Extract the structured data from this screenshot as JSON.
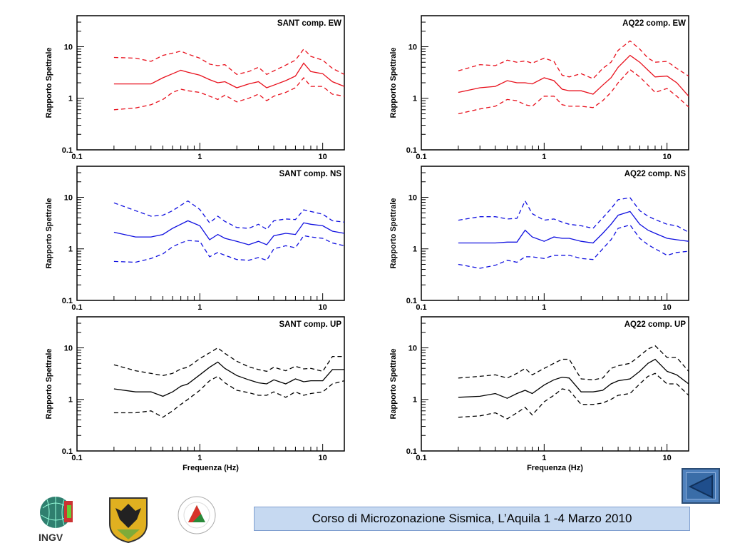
{
  "chart_data": [
    {
      "type": "line",
      "title": "SANT comp. EW",
      "ylabel": "Rapporto Spettrale",
      "xlabel": "",
      "xscale": "log",
      "yscale": "log",
      "xlim": [
        0.1,
        15
      ],
      "ylim": [
        0.1,
        40
      ],
      "xticks": [
        "0.1",
        "1",
        "10"
      ],
      "yticks": [
        "0.1",
        "1",
        "10"
      ],
      "color": "#e8101c",
      "x": [
        0.2,
        0.3,
        0.4,
        0.5,
        0.6,
        0.7,
        0.8,
        1,
        1.2,
        1.4,
        1.6,
        2,
        2.5,
        3,
        3.5,
        4,
        5,
        6,
        7,
        8,
        10,
        12,
        15
      ],
      "series": [
        {
          "style": "solid",
          "values": [
            1.9,
            1.9,
            1.9,
            2.5,
            3,
            3.5,
            3.2,
            2.8,
            2.3,
            2.0,
            2.1,
            1.6,
            1.9,
            2.1,
            1.6,
            1.8,
            2.2,
            2.7,
            4.8,
            3.3,
            3.0,
            2.1,
            1.7
          ]
        },
        {
          "style": "dashed",
          "values": [
            6.2,
            6.0,
            5.2,
            6.8,
            7.5,
            8.2,
            7.2,
            6.0,
            4.6,
            4.3,
            4.5,
            2.9,
            3.3,
            4.0,
            2.9,
            3.4,
            4.4,
            5.5,
            9.0,
            6.5,
            5.5,
            3.8,
            2.9
          ]
        },
        {
          "style": "dashed",
          "values": [
            0.6,
            0.65,
            0.75,
            0.95,
            1.3,
            1.5,
            1.4,
            1.3,
            1.1,
            0.95,
            1.15,
            0.85,
            1.0,
            1.2,
            0.9,
            1.1,
            1.3,
            1.6,
            2.5,
            1.7,
            1.7,
            1.2,
            1.1
          ]
        }
      ]
    },
    {
      "type": "line",
      "title": "AQ22 comp. EW",
      "ylabel": "Rapporto Spettrale",
      "xlabel": "",
      "xscale": "log",
      "yscale": "log",
      "xlim": [
        0.1,
        15
      ],
      "ylim": [
        0.1,
        40
      ],
      "xticks": [
        "0.1",
        "1",
        "10"
      ],
      "yticks": [
        "0.1",
        "1",
        "10"
      ],
      "color": "#e8101c",
      "x": [
        0.2,
        0.3,
        0.4,
        0.5,
        0.6,
        0.7,
        0.8,
        1,
        1.2,
        1.4,
        1.6,
        2,
        2.5,
        3,
        3.5,
        4,
        5,
        6,
        7,
        8,
        10,
        12,
        15
      ],
      "series": [
        {
          "style": "solid",
          "values": [
            1.3,
            1.6,
            1.7,
            2.2,
            2.0,
            2.0,
            1.9,
            2.5,
            2.2,
            1.5,
            1.4,
            1.4,
            1.2,
            1.8,
            2.5,
            4.0,
            6.8,
            5.0,
            3.5,
            2.6,
            2.7,
            2.0,
            1.1
          ]
        },
        {
          "style": "dashed",
          "values": [
            3.4,
            4.5,
            4.3,
            5.5,
            5.0,
            5.3,
            4.8,
            6.0,
            5.2,
            2.8,
            2.6,
            3.0,
            2.4,
            3.8,
            5.0,
            8.5,
            13,
            9.0,
            6.0,
            5.0,
            5.2,
            3.8,
            2.7
          ]
        },
        {
          "style": "dashed",
          "values": [
            0.5,
            0.62,
            0.7,
            0.95,
            0.9,
            0.75,
            0.7,
            1.1,
            1.1,
            0.75,
            0.7,
            0.7,
            0.66,
            0.9,
            1.3,
            2.0,
            3.6,
            2.6,
            1.8,
            1.3,
            1.55,
            1.1,
            0.68
          ]
        }
      ]
    },
    {
      "type": "line",
      "title": "SANT comp. NS",
      "ylabel": "Rapporto Spettrale",
      "xlabel": "",
      "xscale": "log",
      "yscale": "log",
      "xlim": [
        0.1,
        15
      ],
      "ylim": [
        0.1,
        40
      ],
      "xticks": [
        "0.1",
        "1",
        "10"
      ],
      "yticks": [
        "0.1",
        "1",
        "10"
      ],
      "color": "#1010e0",
      "x": [
        0.2,
        0.3,
        0.4,
        0.5,
        0.6,
        0.7,
        0.8,
        1,
        1.2,
        1.4,
        1.6,
        2,
        2.5,
        3,
        3.5,
        4,
        5,
        6,
        7,
        8,
        10,
        12,
        15
      ],
      "series": [
        {
          "style": "solid",
          "values": [
            2.1,
            1.7,
            1.7,
            1.9,
            2.5,
            3.0,
            3.5,
            2.8,
            1.5,
            1.9,
            1.6,
            1.4,
            1.2,
            1.4,
            1.2,
            1.8,
            2.0,
            1.9,
            3.2,
            3.0,
            2.8,
            2.2,
            2.0
          ]
        },
        {
          "style": "dashed",
          "values": [
            7.8,
            5.5,
            4.3,
            4.5,
            5.5,
            7.0,
            8.5,
            5.8,
            3.2,
            4.3,
            3.4,
            2.6,
            2.5,
            3.0,
            2.4,
            3.5,
            3.8,
            3.7,
            5.7,
            5.3,
            4.7,
            3.5,
            3.3
          ]
        },
        {
          "style": "dashed",
          "values": [
            0.57,
            0.55,
            0.65,
            0.8,
            1.1,
            1.3,
            1.45,
            1.4,
            0.7,
            0.85,
            0.75,
            0.62,
            0.6,
            0.68,
            0.6,
            1.0,
            1.15,
            1.05,
            1.8,
            1.7,
            1.6,
            1.3,
            1.15
          ]
        }
      ]
    },
    {
      "type": "line",
      "title": "AQ22 comp. NS",
      "ylabel": "Rapporto Spettrale",
      "xlabel": "",
      "xscale": "log",
      "yscale": "log",
      "xlim": [
        0.1,
        15
      ],
      "ylim": [
        0.1,
        40
      ],
      "xticks": [
        "0.1",
        "1",
        "10"
      ],
      "yticks": [
        "0.1",
        "1",
        "10"
      ],
      "color": "#1010e0",
      "x": [
        0.2,
        0.3,
        0.4,
        0.5,
        0.6,
        0.7,
        0.8,
        1,
        1.2,
        1.4,
        1.6,
        2,
        2.5,
        3,
        3.5,
        4,
        5,
        6,
        7,
        8,
        10,
        12,
        15
      ],
      "series": [
        {
          "style": "solid",
          "values": [
            1.3,
            1.3,
            1.3,
            1.35,
            1.35,
            2.3,
            1.7,
            1.4,
            1.7,
            1.6,
            1.6,
            1.4,
            1.3,
            2.0,
            3.0,
            4.5,
            5.3,
            3.0,
            2.3,
            2.0,
            1.6,
            1.5,
            1.4
          ]
        },
        {
          "style": "dashed",
          "values": [
            3.6,
            4.2,
            4.2,
            3.8,
            3.9,
            8.5,
            4.8,
            3.6,
            3.8,
            3.3,
            3.0,
            2.8,
            2.5,
            4.0,
            6.0,
            9.0,
            9.8,
            5.5,
            4.3,
            3.7,
            3.0,
            2.8,
            2.1
          ]
        },
        {
          "style": "dashed",
          "values": [
            0.5,
            0.42,
            0.48,
            0.6,
            0.55,
            0.7,
            0.7,
            0.65,
            0.75,
            0.75,
            0.75,
            0.65,
            0.62,
            1.0,
            1.5,
            2.5,
            2.9,
            1.6,
            1.2,
            1.0,
            0.75,
            0.85,
            0.9
          ]
        }
      ]
    },
    {
      "type": "line",
      "title": "SANT comp. UP",
      "ylabel": "Rapporto Spettrale",
      "xlabel": "Frequenza (Hz)",
      "xscale": "log",
      "yscale": "log",
      "xlim": [
        0.1,
        15
      ],
      "ylim": [
        0.1,
        40
      ],
      "xticks": [
        "0.1",
        "1",
        "10"
      ],
      "yticks": [
        "0.1",
        "1",
        "10"
      ],
      "color": "#000000",
      "x": [
        0.2,
        0.3,
        0.4,
        0.5,
        0.6,
        0.7,
        0.8,
        1,
        1.2,
        1.4,
        1.6,
        2,
        2.5,
        3,
        3.5,
        4,
        5,
        6,
        7,
        8,
        10,
        12,
        15
      ],
      "series": [
        {
          "style": "solid",
          "values": [
            1.6,
            1.4,
            1.4,
            1.15,
            1.4,
            1.8,
            2.0,
            3.0,
            4.2,
            5.3,
            4.0,
            2.9,
            2.4,
            2.1,
            2.0,
            2.4,
            2.0,
            2.5,
            2.2,
            2.3,
            2.3,
            3.8,
            3.8
          ]
        },
        {
          "style": "dashed",
          "values": [
            4.7,
            3.6,
            3.2,
            2.9,
            3.2,
            3.9,
            4.2,
            6.2,
            8.0,
            10.0,
            7.8,
            5.5,
            4.3,
            3.8,
            3.5,
            4.2,
            3.6,
            4.4,
            3.9,
            4.0,
            3.5,
            6.8,
            6.8
          ]
        },
        {
          "style": "dashed",
          "values": [
            0.55,
            0.55,
            0.6,
            0.45,
            0.6,
            0.8,
            1.0,
            1.5,
            2.3,
            2.8,
            2.1,
            1.5,
            1.35,
            1.2,
            1.2,
            1.4,
            1.1,
            1.4,
            1.2,
            1.3,
            1.4,
            2.0,
            2.3
          ]
        }
      ]
    },
    {
      "type": "line",
      "title": "AQ22 comp. UP",
      "ylabel": "Rapporto Spettrale",
      "xlabel": "Frequenza (Hz)",
      "xscale": "log",
      "yscale": "log",
      "xlim": [
        0.1,
        15
      ],
      "ylim": [
        0.1,
        40
      ],
      "xticks": [
        "0.1",
        "1",
        "10"
      ],
      "yticks": [
        "0.1",
        "1",
        "10"
      ],
      "color": "#000000",
      "x": [
        0.2,
        0.3,
        0.4,
        0.5,
        0.6,
        0.7,
        0.8,
        1,
        1.2,
        1.4,
        1.6,
        2,
        2.5,
        3,
        3.5,
        4,
        5,
        6,
        7,
        8,
        10,
        12,
        15
      ],
      "series": [
        {
          "style": "solid",
          "values": [
            1.1,
            1.15,
            1.3,
            1.05,
            1.3,
            1.5,
            1.3,
            1.9,
            2.4,
            2.7,
            2.6,
            1.4,
            1.4,
            1.5,
            2.0,
            2.3,
            2.5,
            3.5,
            5.0,
            6.0,
            3.5,
            3.0,
            2.0
          ]
        },
        {
          "style": "dashed",
          "values": [
            2.6,
            2.8,
            3.0,
            2.6,
            3.2,
            4.0,
            3.0,
            4.0,
            5.0,
            6.0,
            6.0,
            2.5,
            2.4,
            2.6,
            4.0,
            4.5,
            5.0,
            7.0,
            9.5,
            11,
            6.5,
            6.5,
            3.5
          ]
        },
        {
          "style": "dashed",
          "values": [
            0.45,
            0.48,
            0.55,
            0.42,
            0.55,
            0.7,
            0.5,
            0.9,
            1.2,
            1.6,
            1.5,
            0.8,
            0.8,
            0.85,
            1.0,
            1.2,
            1.3,
            2.0,
            2.8,
            3.2,
            2.0,
            2.0,
            1.2
          ]
        }
      ]
    }
  ],
  "footer": {
    "banner_text": "Corso di Microzonazione Sismica, L’Aquila 1 -4 Marzo 2010",
    "logos": {
      "ingv": "INGV",
      "protezione_civile": "PROTEZIONE CIVILE NAZIONALE"
    },
    "back_button_icon": "triangle-left-icon"
  }
}
